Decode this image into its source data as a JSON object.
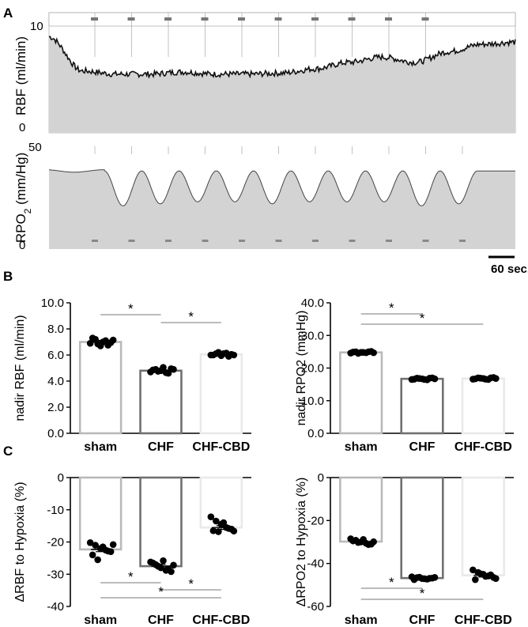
{
  "panel_labels": [
    "A",
    "B",
    "C"
  ],
  "panel_a": {
    "rbf": {
      "ylabel": "RBF (ml/min)",
      "ymax_label": "10",
      "ymin_label": "0"
    },
    "rpo2": {
      "ylabel": "RPO",
      "ylabel_sub": "2",
      "ylabel_tail": " (mm/Hg)",
      "ymax_label": "50",
      "ymin_label": "0"
    },
    "scalebar_label": "60 sec."
  },
  "colors": {
    "trace_fill": "#d3d3d3",
    "trace_line": "#111111",
    "sham": "#b9b9b9",
    "chf": "#707070",
    "chf_cbd": "#e9e9e9",
    "dot": "#000000"
  },
  "chart_data": [
    {
      "id": "rbf_trace",
      "type": "area",
      "ylabel": "RBF (ml/min)",
      "ylim": [
        0,
        10
      ],
      "segments": 10,
      "levels": [
        9.0,
        5.8,
        5.5,
        5.5,
        5.7,
        5.5,
        5.5,
        5.6,
        6.0,
        6.6,
        7.1,
        6.6,
        7.6,
        8.3,
        8.5
      ]
    },
    {
      "id": "rpo2_trace",
      "type": "area",
      "ylabel": "RPO2 (mm/Hg)",
      "ylim": [
        0,
        50
      ],
      "baseline": 38,
      "nadirs": [
        21,
        22,
        23,
        23,
        22,
        23,
        23,
        23,
        21,
        22
      ]
    },
    {
      "id": "nadir_rbf",
      "type": "bar",
      "categories": [
        "sham",
        "CHF",
        "CHF-CBD"
      ],
      "values": [
        7.0,
        4.8,
        6.05
      ],
      "errors": [
        0.12,
        0.08,
        0.06
      ],
      "points": [
        [
          6.9,
          7.2,
          6.7,
          7.1,
          6.95,
          7.3,
          6.85,
          7.0,
          6.75,
          7.15
        ],
        [
          4.7,
          4.9,
          4.8,
          4.65,
          4.95,
          4.85,
          4.75,
          5.05,
          4.6,
          4.9
        ],
        [
          6.0,
          6.1,
          5.95,
          6.15,
          6.05,
          6.0,
          6.2,
          6.1,
          5.9,
          6.0
        ]
      ],
      "ylabel": "nadir RBF (ml/min)",
      "ylim": [
        0,
        10
      ],
      "yticks": [
        "0.0",
        "2.0",
        "4.0",
        "6.0",
        "8.0",
        "10.0"
      ],
      "significance": [
        {
          "from": 0,
          "to": 1,
          "label": "*"
        },
        {
          "from": 1,
          "to": 2,
          "label": "*"
        }
      ]
    },
    {
      "id": "nadir_rpo2",
      "type": "bar",
      "categories": [
        "sham",
        "CHF",
        "CHF-CBD"
      ],
      "values": [
        24.8,
        16.7,
        16.8
      ],
      "errors": [
        0.2,
        0.2,
        0.2
      ],
      "points": [
        [
          24.6,
          25.0,
          24.8,
          24.7,
          25.1,
          24.9,
          24.5,
          24.8,
          25.0,
          24.7
        ],
        [
          16.5,
          16.9,
          16.7,
          16.4,
          17.0,
          16.6,
          16.8,
          16.5,
          16.9,
          16.7
        ],
        [
          16.6,
          17.0,
          16.8,
          16.5,
          17.1,
          16.7,
          16.9,
          16.6,
          17.0,
          16.8
        ]
      ],
      "ylabel": "nadir RPO2 (mmHg)",
      "ylim": [
        0,
        40
      ],
      "yticks": [
        "0.0",
        "10.0",
        "20.0",
        "30.0",
        "40.0"
      ],
      "significance": [
        {
          "from": 0,
          "to": 1,
          "label": "*"
        },
        {
          "from": 0,
          "to": 2,
          "label": "*"
        }
      ]
    },
    {
      "id": "delta_rbf",
      "type": "bar",
      "categories": [
        "sham",
        "CHF",
        "CHF-CBD"
      ],
      "values": [
        -22.3,
        -27.5,
        -15.5
      ],
      "errors": [
        0.7,
        0.6,
        0.6
      ],
      "points": [
        [
          -20.2,
          -21.0,
          -22.0,
          -22.5,
          -23.0,
          -24.0,
          -25.5,
          -21.5,
          -22.8,
          -20.8
        ],
        [
          -26.2,
          -27.0,
          -28.0,
          -28.8,
          -29.2,
          -26.5,
          -27.5,
          -25.8,
          -28.5,
          -27.2
        ],
        [
          -12.2,
          -13.5,
          -14.5,
          -15.5,
          -16.0,
          -16.5,
          -16.8,
          -14.0,
          -15.8,
          -16.6
        ]
      ],
      "ylabel": "ΔRBF to Hypoxia (%)",
      "ylim": [
        -40,
        0
      ],
      "yticks": [
        "0",
        "-10",
        "-20",
        "-30",
        "-40"
      ],
      "significance": [
        {
          "from": 0,
          "to": 1,
          "label": "*"
        },
        {
          "from": 1,
          "to": 2,
          "label": "*"
        },
        {
          "from": 0,
          "to": 2,
          "label": "*"
        }
      ]
    },
    {
      "id": "delta_rpo2",
      "type": "bar",
      "categories": [
        "sham",
        "CHF",
        "CHF-CBD"
      ],
      "values": [
        -29.8,
        -46.8,
        -45.5
      ],
      "errors": [
        0.5,
        0.3,
        0.8
      ],
      "points": [
        [
          -28.5,
          -29.2,
          -30.0,
          -30.6,
          -31.0,
          -29.5,
          -30.2,
          -28.8,
          -31.2,
          -29.9
        ],
        [
          -46.2,
          -46.6,
          -47.0,
          -47.3,
          -46.8,
          -47.5,
          -46.4,
          -47.1,
          -46.9,
          -46.5
        ],
        [
          -43.0,
          -44.2,
          -45.0,
          -45.8,
          -46.5,
          -47.5,
          -44.8,
          -46.0,
          -45.3,
          -47.0
        ]
      ],
      "ylabel": "ΔRPO2 to Hypoxia (%)",
      "ylim": [
        -60,
        0
      ],
      "yticks": [
        "0",
        "-20",
        "-40",
        "-60"
      ],
      "significance": [
        {
          "from": 0,
          "to": 1,
          "label": "*"
        },
        {
          "from": 0,
          "to": 2,
          "label": "*"
        }
      ]
    }
  ]
}
